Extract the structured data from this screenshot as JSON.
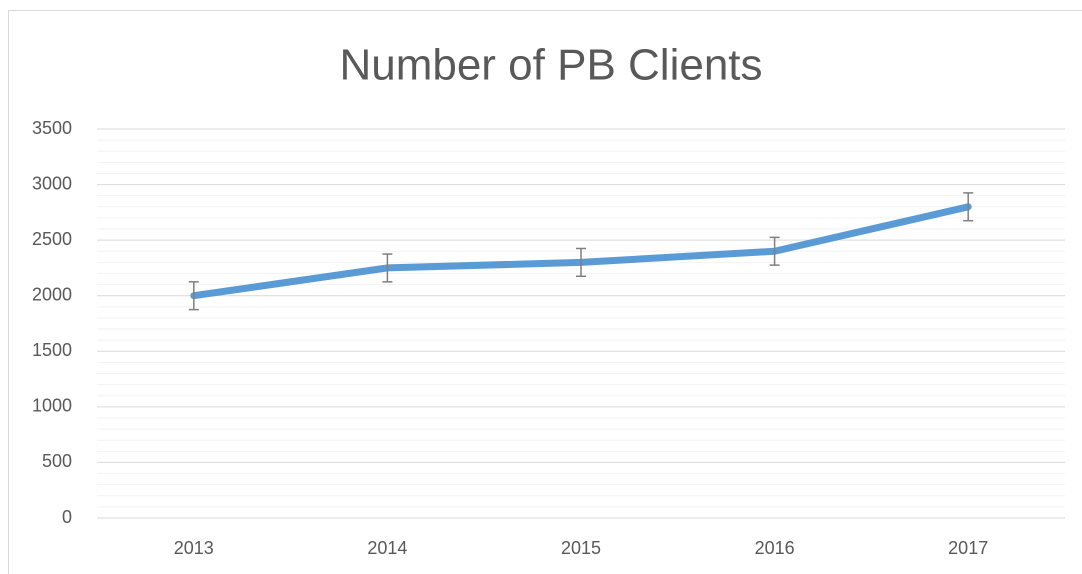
{
  "chart_data": {
    "type": "line",
    "title": "Number of PB Clients",
    "categories": [
      "2013",
      "2014",
      "2015",
      "2016",
      "2017"
    ],
    "values": [
      2000,
      2250,
      2300,
      2400,
      2800
    ],
    "errors": [
      125,
      125,
      125,
      125,
      125
    ],
    "color": "#5b9bd5",
    "ylim": [
      0,
      3500
    ],
    "yticks": [
      0,
      500,
      1000,
      1500,
      2000,
      2500,
      3000,
      3500
    ],
    "minor_yticks": [
      100,
      200,
      300,
      400,
      600,
      700,
      800,
      900,
      1100,
      1200,
      1300,
      1400,
      1600,
      1700,
      1800,
      1900,
      2100,
      2200,
      2300,
      2400,
      2600,
      2700,
      2800,
      2900,
      3100,
      3200,
      3300,
      3400
    ],
    "grid": true
  }
}
